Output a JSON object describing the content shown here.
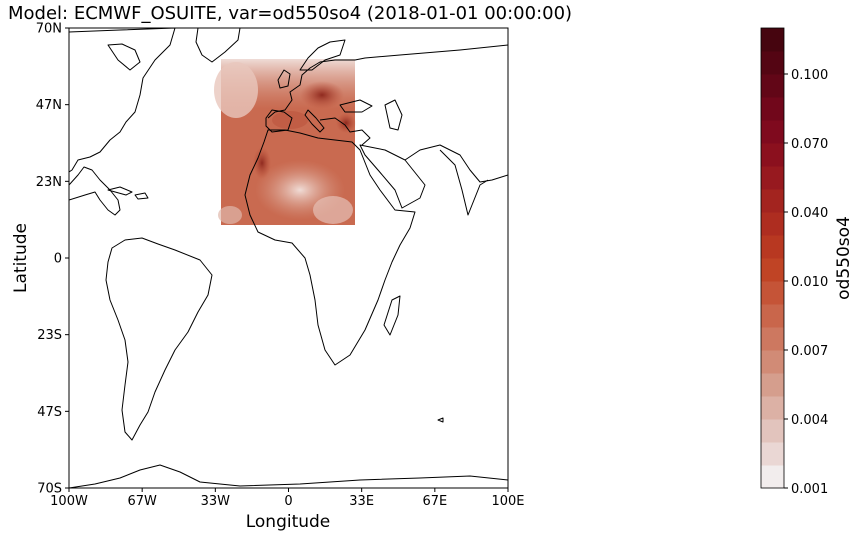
{
  "title": "Model: ECMWF_OSUITE, var=od550so4 (2018-01-01 00:00:00)",
  "map": {
    "xlabel": "Longitude",
    "ylabel": "Latitude",
    "lon_ticks": [
      "100W",
      "67W",
      "33W",
      "0",
      "33E",
      "67E",
      "100E"
    ],
    "lat_ticks": [
      "70N",
      "47N",
      "23N",
      "0",
      "23S",
      "47S",
      "70S"
    ],
    "extent": {
      "lon": [
        -100,
        100
      ],
      "lat": [
        -70,
        70
      ]
    },
    "data_region": {
      "lon": [
        -30,
        28
      ],
      "lat": [
        10,
        60
      ]
    }
  },
  "colorbar": {
    "label": "od550so4",
    "tick_labels": [
      "0.001",
      "0.004",
      "0.007",
      "0.010",
      "0.040",
      "0.070",
      "0.100"
    ],
    "colors": [
      "#f2eded",
      "#ead7d4",
      "#e2c4bd",
      "#dcb1a5",
      "#d59e8d",
      "#d18b76",
      "#cd7860",
      "#c9664b",
      "#c55437",
      "#c04425",
      "#b83821",
      "#ae2d20",
      "#a3241f",
      "#97191f",
      "#8b101e",
      "#7f0a1e",
      "#71071b",
      "#620617",
      "#540513",
      "#46050f"
    ]
  }
}
